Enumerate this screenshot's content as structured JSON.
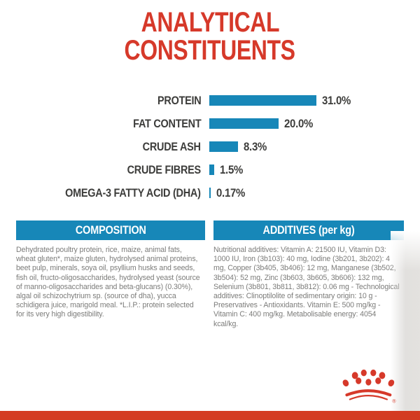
{
  "title": {
    "line1": "ANALYTICAL",
    "line2": "CONSTITUENTS"
  },
  "chart_data": {
    "type": "bar",
    "orientation": "horizontal",
    "categories": [
      "PROTEIN",
      "FAT CONTENT",
      "CRUDE ASH",
      "CRUDE FIBRES",
      "OMEGA-3 FATTY ACID (DHA)"
    ],
    "values": [
      31.0,
      20.0,
      8.3,
      1.5,
      0.17
    ],
    "value_labels": [
      "31.0%",
      "20.0%",
      "8.3%",
      "1.5%",
      "0.17%"
    ],
    "unit": "%",
    "xlim": [
      0,
      31
    ],
    "grid": false,
    "legend": false,
    "bar_color": "#1787b8"
  },
  "sections": {
    "composition": {
      "header": "COMPOSITION",
      "body": "Dehydrated poultry protein, rice, maize, animal fats, wheat gluten*, maize gluten, hydrolysed animal proteins, beet pulp, minerals, soya oil, psyllium husks and seeds, fish oil, fructo-oligosaccharides, hydrolysed yeast (source of manno-oligosaccharides and beta-glucans) (0.30%), algal oil schizochytrium sp. (source of dha), yucca schidigera juice, marigold meal. *L.I.P.: protein selected for its very high digestibility."
    },
    "additives": {
      "header": "ADDITIVES (per kg)",
      "body": "Nutritional additives: Vitamin A: 21500 IU, Vitamin D3: 1000 IU, Iron (3b103): 40 mg, Iodine (3b201, 3b202): 4 mg, Copper (3b405, 3b406): 12 mg, Manganese (3b502, 3b504): 52 mg, Zinc (3b603, 3b605, 3b606): 132 mg, Selenium (3b801, 3b811, 3b812): 0.06 mg - Technological additives: Clinoptilolite of sedimentary origin: 10 g - Preservatives - Antioxidants. Vitamin E: 500 mg/kg - Vitamin C: 400 mg/kg. Metabolisable energy: 4054 kcal/kg."
    }
  },
  "brand": {
    "logo": "royal-canin-crown",
    "registered_mark": "®"
  },
  "colors": {
    "red": "#d6392a",
    "blue": "#1787b8",
    "band_red": "#d43b22",
    "label_gray": "#3d3d3b",
    "body_gray": "#7c7c7a"
  }
}
